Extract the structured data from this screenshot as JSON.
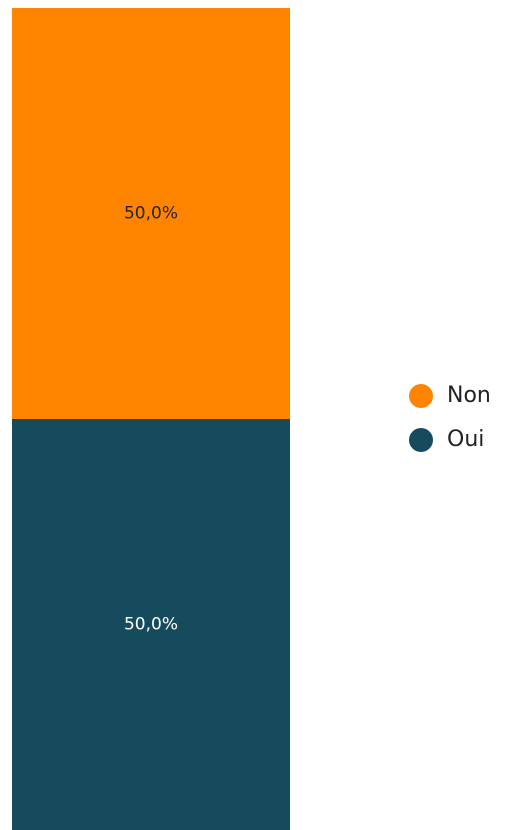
{
  "chart_data": {
    "type": "bar",
    "stacked": true,
    "normalized": true,
    "categories": [
      ""
    ],
    "series": [
      {
        "name": "Non",
        "values": [
          50.0
        ],
        "label": "50,0%",
        "color": "#FF8500",
        "label_color": "#222222"
      },
      {
        "name": "Oui",
        "values": [
          50.0
        ],
        "label": "50,0%",
        "color": "#154B5C",
        "label_color": "#ffffff"
      }
    ],
    "ylim": [
      0,
      100
    ],
    "grid": false,
    "legend": "right"
  }
}
